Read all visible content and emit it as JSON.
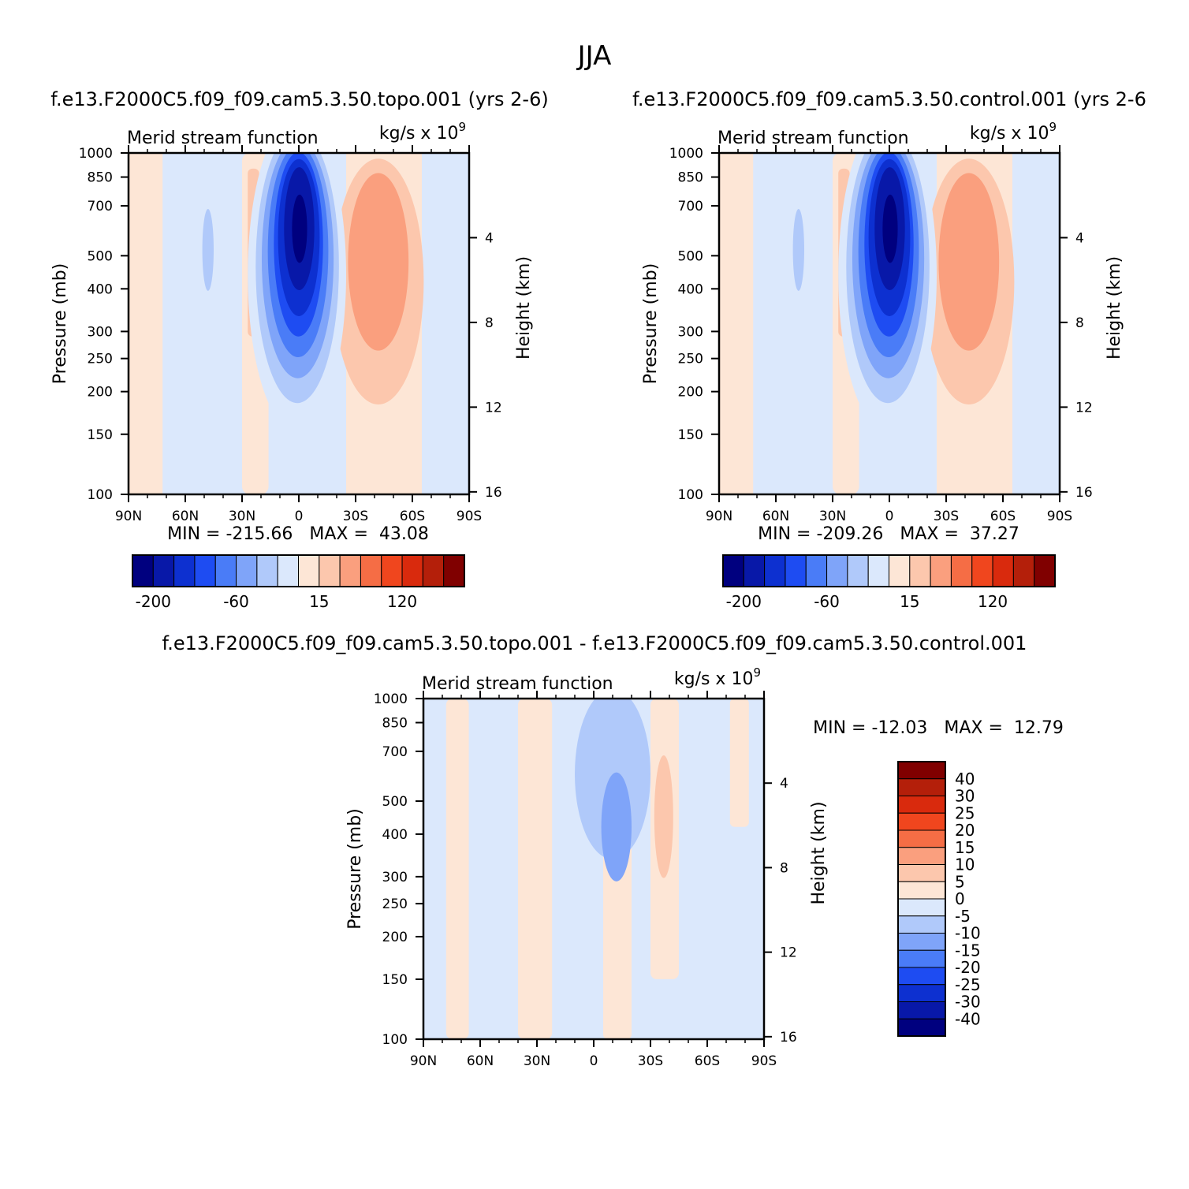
{
  "figure": {
    "title": "JJA"
  },
  "colors": {
    "cb_top": [
      "#00007f",
      "#0818a8",
      "#0d30d0",
      "#1e4cf2",
      "#4a7cf7",
      "#7fa4f9",
      "#b0c9fa",
      "#dbe8fc",
      "#fde6d6",
      "#fcc7ad",
      "#fa9f7e",
      "#f56d45",
      "#f0461e",
      "#d92a0d",
      "#b41f0a",
      "#800000"
    ],
    "cb_diff": [
      "#00007f",
      "#0818a8",
      "#0d30d0",
      "#1e4cf2",
      "#4a7cf7",
      "#7fa4f9",
      "#b0c9fa",
      "#dbe8fc",
      "#fde6d6",
      "#fcc7ad",
      "#fa9f7e",
      "#f56d45",
      "#f0461e",
      "#d92a0d",
      "#b41f0a",
      "#800000"
    ]
  },
  "chart_data": [
    {
      "type": "heatmap",
      "case_title": "f.e13.F2000C5.f09_f09.cam5.3.50.topo.001  (yrs 2-6)",
      "left_title": "Merid stream function",
      "units": "kg/s x 10",
      "units_exp": "9",
      "ylabel": "Pressure (mb)",
      "ylabel_right": "Height (km)",
      "x_ticks": [
        "90N",
        "60N",
        "30N",
        "0",
        "30S",
        "60S",
        "90S"
      ],
      "y_ticks": [
        "100",
        "150",
        "200",
        "250",
        "300",
        "400",
        "500",
        "700",
        "850",
        "1000"
      ],
      "y_values": [
        100,
        150,
        200,
        250,
        300,
        400,
        500,
        700,
        850,
        1000
      ],
      "height_ticks": [
        "16",
        "12",
        "8",
        "4"
      ],
      "height_values": [
        16,
        12,
        8,
        4
      ],
      "xlim": [
        90,
        -90
      ],
      "ylim": [
        1000,
        100
      ],
      "stats": "MIN = -215.66   MAX =  43.08",
      "colorbar_labels": [
        "-200",
        "-60",
        "15",
        "120"
      ],
      "features": [
        {
          "lat": 2,
          "p": 620,
          "value": -215.66
        },
        {
          "lat": -40,
          "p": 450,
          "value": 43.08
        },
        {
          "lat": -12,
          "p": 420,
          "value": -120
        },
        {
          "lat": 47,
          "p": 500,
          "value": -12
        },
        {
          "lat": 24,
          "p": 550,
          "value": 10
        }
      ]
    },
    {
      "type": "heatmap",
      "case_title": "f.e13.F2000C5.f09_f09.cam5.3.50.control.001  (yrs 2-6",
      "left_title": "Merid stream function",
      "units": "kg/s x 10",
      "units_exp": "9",
      "ylabel": "Pressure (mb)",
      "ylabel_right": "Height (km)",
      "x_ticks": [
        "90N",
        "60N",
        "30N",
        "0",
        "30S",
        "60S",
        "90S"
      ],
      "y_ticks": [
        "100",
        "150",
        "200",
        "250",
        "300",
        "400",
        "500",
        "700",
        "850",
        "1000"
      ],
      "y_values": [
        100,
        150,
        200,
        250,
        300,
        400,
        500,
        700,
        850,
        1000
      ],
      "height_ticks": [
        "16",
        "12",
        "8",
        "4"
      ],
      "height_values": [
        16,
        12,
        8,
        4
      ],
      "xlim": [
        90,
        -90
      ],
      "ylim": [
        1000,
        100
      ],
      "stats": "MIN = -209.26   MAX =  37.27",
      "colorbar_labels": [
        "-200",
        "-60",
        "15",
        "120"
      ],
      "features": [
        {
          "lat": 2,
          "p": 620,
          "value": -209.26
        },
        {
          "lat": -45,
          "p": 470,
          "value": 37.27
        },
        {
          "lat": -12,
          "p": 420,
          "value": -120
        },
        {
          "lat": 47,
          "p": 500,
          "value": -12
        },
        {
          "lat": 24,
          "p": 550,
          "value": 10
        }
      ]
    },
    {
      "type": "heatmap",
      "case_title": "f.e13.F2000C5.f09_f09.cam5.3.50.topo.001 - f.e13.F2000C5.f09_f09.cam5.3.50.control.001",
      "left_title": "Merid stream function",
      "units": "kg/s x 10",
      "units_exp": "9",
      "ylabel": "Pressure (mb)",
      "ylabel_right": "Height (km)",
      "x_ticks": [
        "90N",
        "60N",
        "30N",
        "0",
        "30S",
        "60S",
        "90S"
      ],
      "y_ticks": [
        "100",
        "150",
        "200",
        "250",
        "300",
        "400",
        "500",
        "700",
        "850",
        "1000"
      ],
      "y_values": [
        100,
        150,
        200,
        250,
        300,
        400,
        500,
        700,
        850,
        1000
      ],
      "height_ticks": [
        "16",
        "12",
        "8",
        "4"
      ],
      "height_values": [
        16,
        12,
        8,
        4
      ],
      "xlim": [
        90,
        -90
      ],
      "ylim": [
        1000,
        100
      ],
      "stats": "MIN = -12.03   MAX =  12.79",
      "colorbar_labels": [
        "40",
        "30",
        "25",
        "20",
        "15",
        "10",
        "5",
        "0",
        "-5",
        "-10",
        "-15",
        "-20",
        "-25",
        "-30",
        "-40"
      ],
      "features": [
        {
          "lat": -12,
          "p": 450,
          "value": -12.03
        },
        {
          "lat": -36,
          "p": 480,
          "value": 12.79
        },
        {
          "lat": 68,
          "p": 500,
          "value": 4
        },
        {
          "lat": 5,
          "p": 750,
          "value": -6
        }
      ]
    }
  ]
}
